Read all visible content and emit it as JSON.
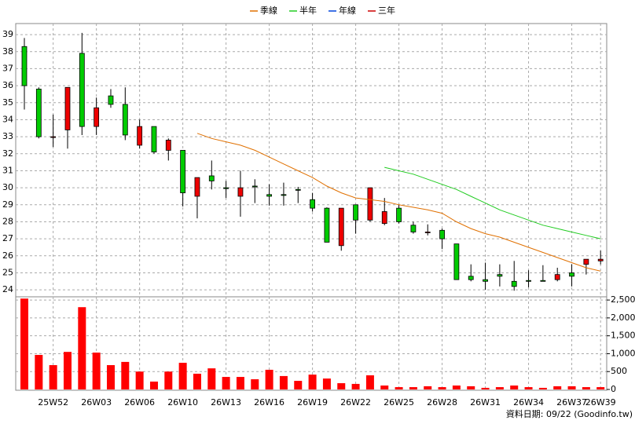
{
  "chart_data": {
    "type": "candlestick",
    "categories": [
      null,
      null,
      "25W52",
      null,
      null,
      "26W03",
      null,
      null,
      "26W06",
      null,
      null,
      "26W10",
      null,
      null,
      "26W13",
      null,
      null,
      "26W16",
      null,
      null,
      "26W19",
      null,
      null,
      "26W22",
      null,
      null,
      "26W25",
      null,
      null,
      "26W28",
      null,
      null,
      "26W31",
      null,
      null,
      "26W34",
      null,
      null,
      "26W37",
      null,
      "26W39"
    ],
    "open": [
      38.3,
      35.8,
      33.0,
      33.4,
      37.9,
      33.6,
      35.4,
      34.9,
      32.5,
      33.6,
      32.2,
      32.2,
      29.5,
      30.7,
      30.0,
      29.5,
      30.1,
      29.6,
      29.6,
      29.9,
      29.3,
      28.8,
      26.6,
      29.0,
      28.1,
      27.9,
      28.8,
      27.8,
      27.4,
      27.5,
      26.7,
      24.8,
      24.6,
      24.9,
      24.5,
      24.55,
      24.55,
      24.6,
      25.0,
      25.5,
      25.7
    ],
    "high": [
      38.8,
      35.9,
      34.3,
      35.9,
      39.1,
      35.3,
      35.8,
      35.9,
      34.0,
      33.6,
      32.9,
      32.2,
      30.6,
      31.6,
      30.4,
      31.0,
      30.5,
      30.2,
      30.3,
      30.05,
      29.7,
      28.85,
      28.8,
      29.0,
      30.0,
      29.4,
      29.0,
      28.0,
      27.85,
      27.6,
      26.7,
      25.5,
      25.6,
      25.5,
      25.7,
      25.15,
      25.45,
      25.3,
      25.5,
      25.8,
      26.3
    ],
    "low": [
      34.6,
      32.9,
      32.4,
      32.3,
      33.1,
      33.1,
      34.7,
      32.8,
      32.3,
      32.0,
      31.6,
      28.9,
      28.2,
      29.9,
      29.4,
      28.3,
      29.1,
      28.95,
      28.95,
      29.1,
      28.6,
      26.8,
      26.3,
      27.3,
      28.0,
      27.8,
      27.9,
      27.3,
      27.2,
      26.4,
      24.6,
      24.5,
      24.0,
      24.2,
      23.95,
      24.15,
      24.5,
      24.5,
      24.2,
      24.9,
      25.5
    ],
    "close": [
      36.0,
      33.0,
      33.0,
      35.9,
      33.6,
      34.7,
      34.9,
      33.1,
      33.6,
      32.1,
      32.8,
      29.7,
      30.6,
      30.4,
      29.95,
      30.0,
      30.05,
      29.5,
      29.55,
      29.85,
      28.8,
      26.8,
      28.8,
      28.1,
      30.0,
      28.6,
      28.0,
      27.4,
      27.4,
      27.0,
      24.6,
      24.6,
      24.5,
      24.8,
      24.2,
      24.5,
      24.5,
      24.9,
      24.8,
      25.8,
      25.8
    ],
    "up_color": "#ee0000",
    "down_color": "#00cc00",
    "ylim": [
      23.73,
      39.65
    ],
    "yticks": [
      24,
      25,
      26,
      27,
      28,
      29,
      30,
      31,
      32,
      33,
      34,
      35,
      36,
      37,
      38,
      39
    ],
    "grid": true,
    "series": [
      {
        "name": "季線",
        "color": "#e07000",
        "values": [
          null,
          null,
          null,
          null,
          null,
          null,
          null,
          null,
          null,
          null,
          null,
          null,
          33.2,
          32.9,
          32.7,
          32.5,
          32.2,
          31.8,
          31.4,
          31.0,
          30.6,
          30.1,
          29.7,
          29.4,
          29.3,
          29.2,
          29.0,
          28.85,
          28.7,
          28.5,
          28.0,
          27.6,
          27.3,
          27.1,
          26.8,
          26.5,
          26.2,
          25.9,
          25.6,
          25.3,
          25.1
        ]
      },
      {
        "name": "半年",
        "color": "#22cc22",
        "values": [
          null,
          null,
          null,
          null,
          null,
          null,
          null,
          null,
          null,
          null,
          null,
          null,
          null,
          null,
          null,
          null,
          null,
          null,
          null,
          null,
          null,
          null,
          null,
          null,
          null,
          31.2,
          31.0,
          30.8,
          30.5,
          30.2,
          29.9,
          29.5,
          29.1,
          28.7,
          28.4,
          28.1,
          27.8,
          27.6,
          27.4,
          27.2,
          27.0
        ]
      },
      {
        "name": "年線",
        "color": "#0044dd",
        "values": [
          null,
          null,
          null,
          null,
          null,
          null,
          null,
          null,
          null,
          null,
          null,
          null,
          null,
          null,
          null,
          null,
          null,
          null,
          null,
          null,
          null,
          null,
          null,
          null,
          null,
          null,
          null,
          null,
          null,
          null,
          null,
          null,
          null,
          null,
          null,
          null,
          null,
          null,
          null,
          null,
          null
        ]
      },
      {
        "name": "三年",
        "color": "#cc0000",
        "values": [
          null,
          null,
          null,
          null,
          null,
          null,
          null,
          null,
          null,
          null,
          null,
          null,
          null,
          null,
          null,
          null,
          null,
          null,
          null,
          null,
          null,
          null,
          null,
          null,
          null,
          null,
          null,
          null,
          null,
          null,
          null,
          null,
          null,
          null,
          null,
          null,
          null,
          null,
          null,
          null,
          null
        ]
      }
    ],
    "volume": {
      "color": "#ff0000",
      "values": [
        2540,
        965,
        680,
        1050,
        2300,
        1030,
        680,
        770,
        500,
        220,
        500,
        745,
        440,
        590,
        350,
        350,
        285,
        550,
        375,
        240,
        415,
        305,
        175,
        155,
        395,
        110,
        65,
        65,
        90,
        65,
        110,
        90,
        45,
        65,
        110,
        65,
        45,
        90,
        90,
        65,
        65
      ],
      "ylim": [
        0,
        2590
      ],
      "yticks": [
        0,
        500,
        {
          "value": 1000,
          "label": "1,000"
        },
        {
          "value": 1500,
          "label": "1,500"
        },
        {
          "value": 2000,
          "label": "2,000"
        },
        {
          "value": 2500,
          "label": "2,500"
        }
      ]
    },
    "note": "資料日期: 09/22 (Goodinfo.tw)"
  }
}
